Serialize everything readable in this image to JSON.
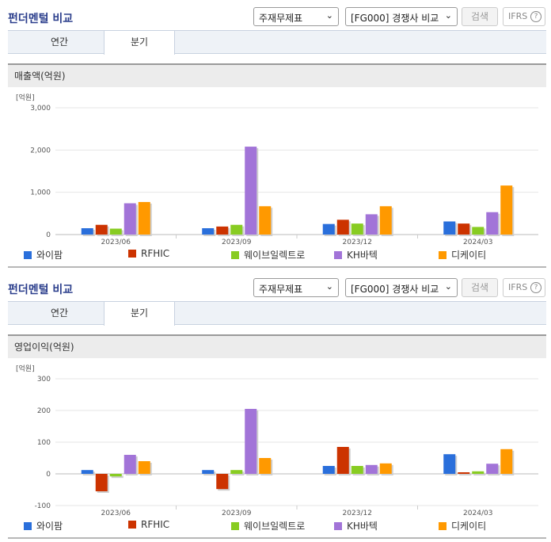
{
  "panels": [
    {
      "title": "펀더멘털 비교",
      "select1": "주재무제표",
      "select2": "[FG000] 경쟁사 비교",
      "search_label": "검색",
      "ifrs_label": "IFRS",
      "tabs": [
        {
          "label": "연간",
          "active": false
        },
        {
          "label": "분기",
          "active": true
        }
      ],
      "metric_label": "매출액(억원)"
    },
    {
      "title": "펀더멘털 비교",
      "select1": "주재무제표",
      "select2": "[FG000] 경쟁사 비교",
      "search_label": "검색",
      "ifrs_label": "IFRS",
      "tabs": [
        {
          "label": "연간",
          "active": false
        },
        {
          "label": "분기",
          "active": true
        }
      ],
      "metric_label": "영업이익(억원)"
    }
  ],
  "chart_data": [
    {
      "type": "bar",
      "unit_label": "[억원]",
      "categories": [
        "2023/06",
        "2023/09",
        "2023/12",
        "2024/03"
      ],
      "ylim": [
        0,
        3000
      ],
      "yticks": [
        0,
        1000,
        2000,
        3000
      ],
      "ytick_labels": [
        "0",
        "1,000",
        "2,000",
        "3,000"
      ],
      "grid": true,
      "legend_position": "bottom",
      "series": [
        {
          "name": "와이팜",
          "color": "#2a6fdb",
          "values": [
            150,
            150,
            250,
            310
          ]
        },
        {
          "name": "RFHIC",
          "color": "#cc3300",
          "values": [
            230,
            190,
            350,
            260
          ]
        },
        {
          "name": "웨이브일렉트로",
          "color": "#88cc22",
          "values": [
            140,
            230,
            260,
            180
          ]
        },
        {
          "name": "KH바텍",
          "color": "#a274d8",
          "values": [
            740,
            2080,
            480,
            530
          ]
        },
        {
          "name": "디케이티",
          "color": "#ff9900",
          "values": [
            770,
            670,
            670,
            1160
          ]
        }
      ]
    },
    {
      "type": "bar",
      "unit_label": "[억원]",
      "categories": [
        "2023/06",
        "2023/09",
        "2023/12",
        "2024/03"
      ],
      "ylim": [
        -100,
        300
      ],
      "yticks": [
        -100,
        0,
        100,
        200,
        300
      ],
      "ytick_labels": [
        "-100",
        "0",
        "100",
        "200",
        "300"
      ],
      "grid": true,
      "legend_position": "bottom",
      "series": [
        {
          "name": "와이팜",
          "color": "#2a6fdb",
          "values": [
            12,
            12,
            25,
            62
          ]
        },
        {
          "name": "RFHIC",
          "color": "#cc3300",
          "values": [
            -55,
            -48,
            85,
            5
          ]
        },
        {
          "name": "웨이브일렉트로",
          "color": "#88cc22",
          "values": [
            -8,
            12,
            25,
            8
          ]
        },
        {
          "name": "KH바텍",
          "color": "#a274d8",
          "values": [
            60,
            205,
            28,
            32
          ]
        },
        {
          "name": "디케이티",
          "color": "#ff9900",
          "values": [
            40,
            50,
            33,
            78
          ]
        }
      ]
    }
  ]
}
